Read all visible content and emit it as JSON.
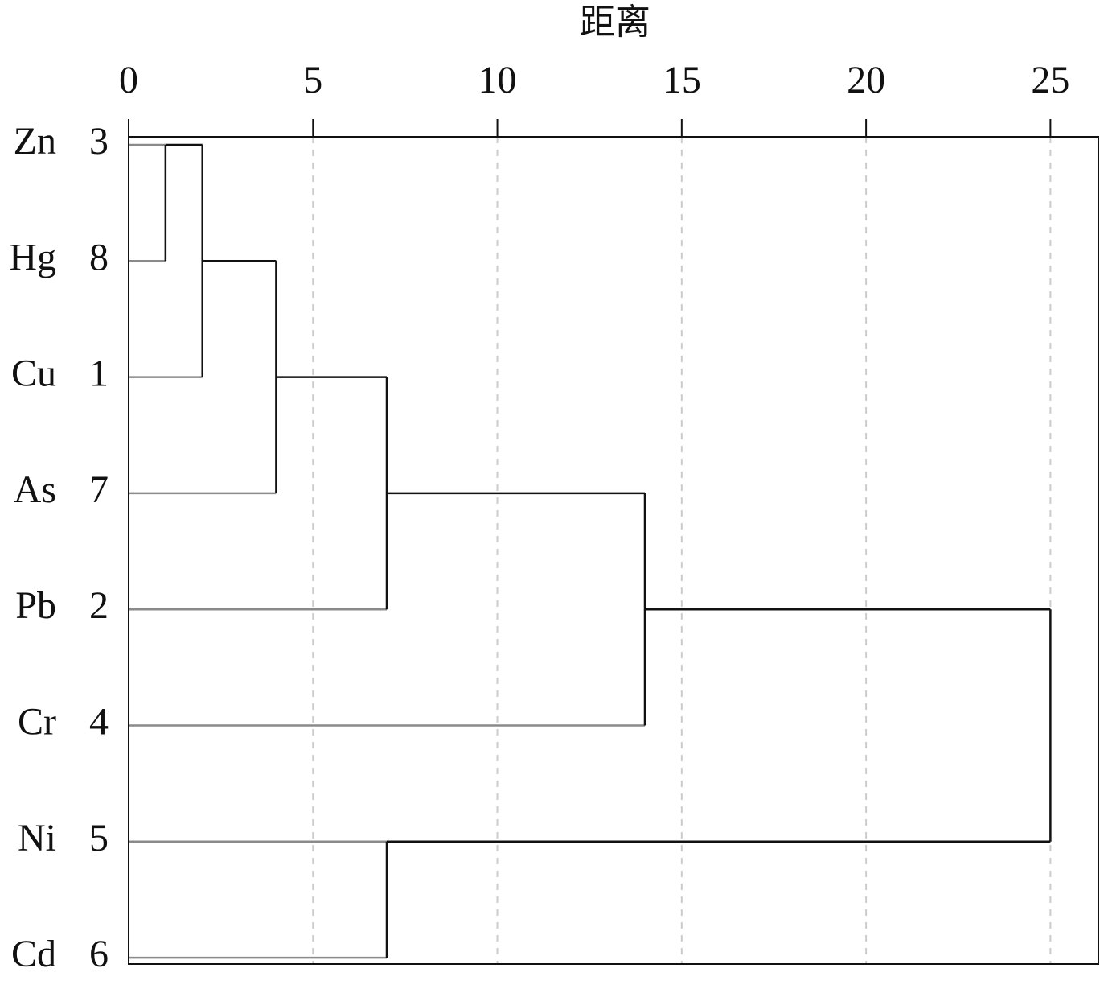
{
  "chart_data": {
    "type": "dendrogram",
    "title": "距离",
    "leaves": [
      {
        "label": "Zn",
        "id": 3
      },
      {
        "label": "Hg",
        "id": 8
      },
      {
        "label": "Cu",
        "id": 1
      },
      {
        "label": "As",
        "id": 7
      },
      {
        "label": "Pb",
        "id": 2
      },
      {
        "label": "Cr",
        "id": 4
      },
      {
        "label": "Ni",
        "id": 5
      },
      {
        "label": "Cd",
        "id": 6
      }
    ],
    "merges": [
      {
        "children": [
          0,
          1
        ],
        "height": 1
      },
      {
        "children": [
          8,
          2
        ],
        "height": 2
      },
      {
        "children": [
          9,
          3
        ],
        "height": 4
      },
      {
        "children": [
          10,
          4
        ],
        "height": 7
      },
      {
        "children": [
          11,
          5
        ],
        "height": 14
      },
      {
        "children": [
          6,
          7
        ],
        "height": 7
      },
      {
        "children": [
          12,
          13
        ],
        "height": 25
      }
    ],
    "xlim": [
      0,
      26.3
    ],
    "xticks": [
      0,
      5,
      10,
      15,
      20,
      25
    ],
    "grid": true,
    "leaf_color": "#8a8a8a",
    "link_color": "#111111"
  }
}
